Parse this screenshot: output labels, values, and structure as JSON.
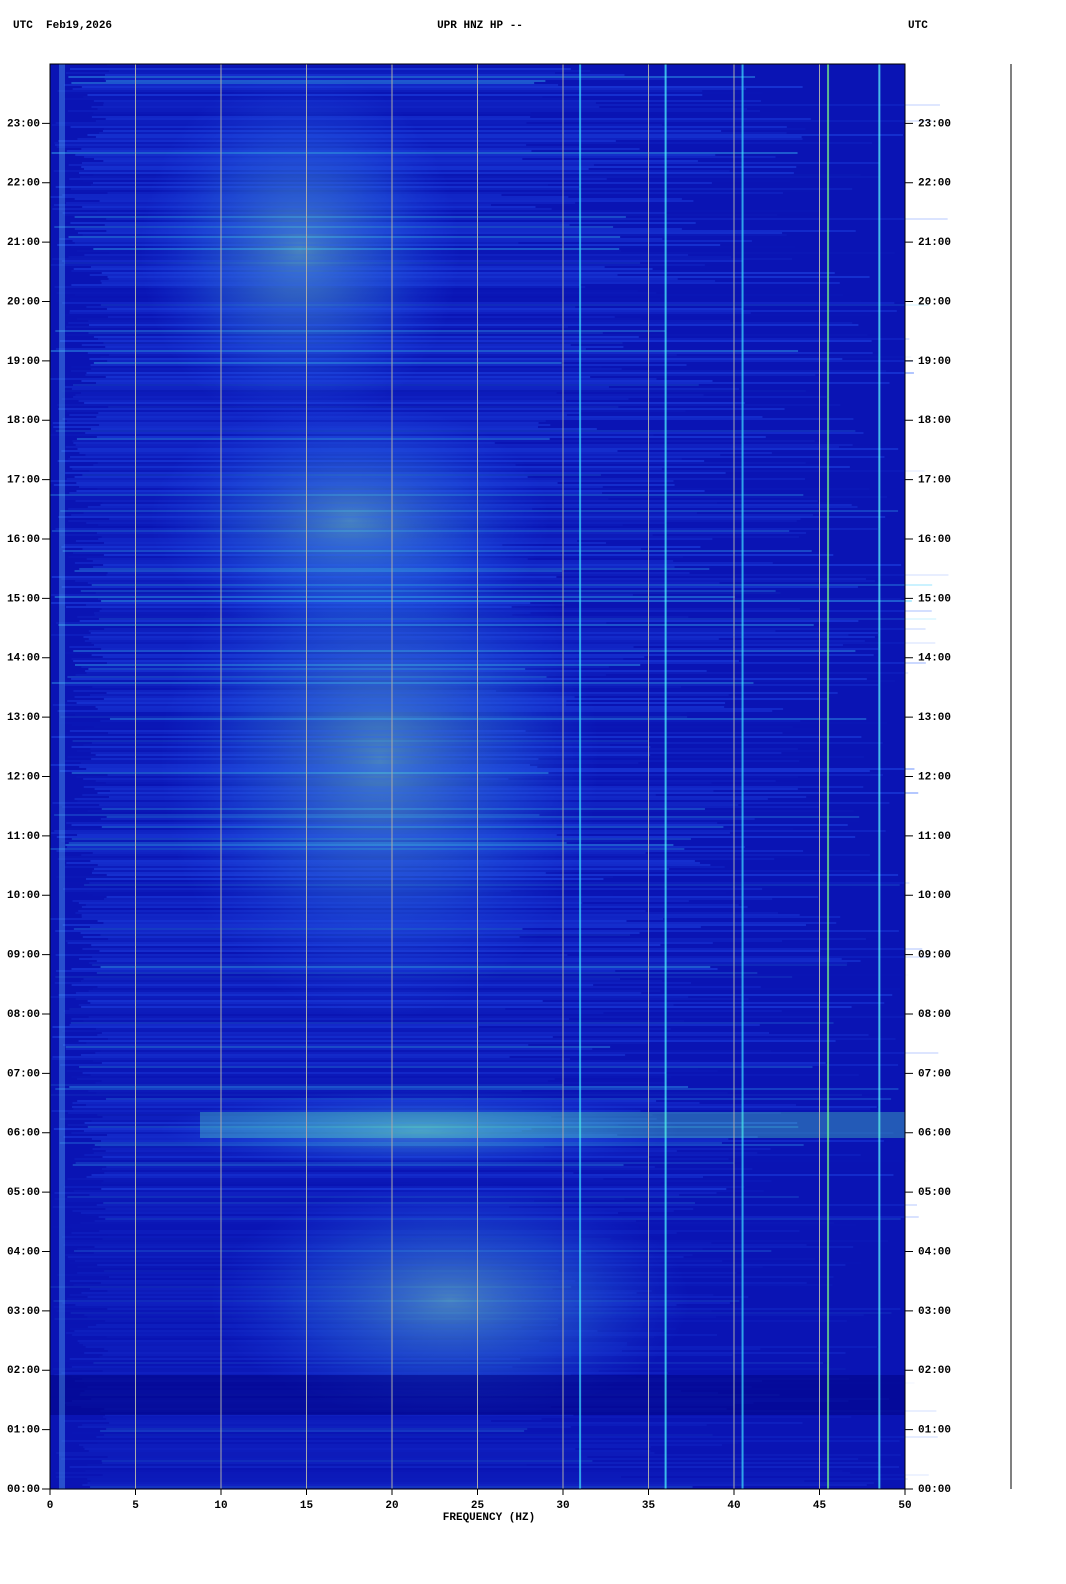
{
  "chart_data": {
    "type": "spectrogram",
    "title": "UPR HNZ HP --",
    "subtitle": "UTC  Feb19,2026",
    "right_label": "UTC",
    "x_label": "FREQUENCY (HZ)",
    "xlim": [
      0,
      50
    ],
    "xticks": [
      0,
      5,
      10,
      15,
      20,
      25,
      30,
      35,
      40,
      45,
      50
    ],
    "ylim": [
      0,
      24
    ],
    "yticks": [
      {
        "value": 0,
        "label": "00:00"
      },
      {
        "value": 1,
        "label": "01:00"
      },
      {
        "value": 2,
        "label": "02:00"
      },
      {
        "value": 3,
        "label": "03:00"
      },
      {
        "value": 4,
        "label": "04:00"
      },
      {
        "value": 5,
        "label": "05:00"
      },
      {
        "value": 6,
        "label": "06:00"
      },
      {
        "value": 7,
        "label": "07:00"
      },
      {
        "value": 8,
        "label": "08:00"
      },
      {
        "value": 9,
        "label": "09:00"
      },
      {
        "value": 10,
        "label": "10:00"
      },
      {
        "value": 11,
        "label": "11:00"
      },
      {
        "value": 12,
        "label": "12:00"
      },
      {
        "value": 13,
        "label": "13:00"
      },
      {
        "value": 14,
        "label": "14:00"
      },
      {
        "value": 15,
        "label": "15:00"
      },
      {
        "value": 16,
        "label": "16:00"
      },
      {
        "value": 17,
        "label": "17:00"
      },
      {
        "value": 18,
        "label": "18:00"
      },
      {
        "value": 19,
        "label": "19:00"
      },
      {
        "value": 20,
        "label": "20:00"
      },
      {
        "value": 21,
        "label": "21:00"
      },
      {
        "value": 22,
        "label": "22:00"
      },
      {
        "value": 23,
        "label": "23:00"
      }
    ],
    "grid": true
  }
}
